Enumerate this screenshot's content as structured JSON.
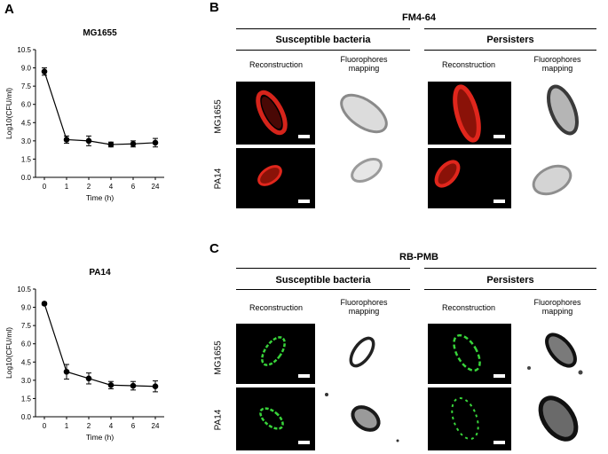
{
  "panels": {
    "a_letter": "A",
    "b_letter": "B",
    "c_letter": "C"
  },
  "chart_data": [
    {
      "type": "line",
      "title": "MG1655",
      "xlabel": "Time (h)",
      "ylabel": "Log10(CFU/ml)",
      "categories": [
        "0",
        "1",
        "2",
        "4",
        "6",
        "24"
      ],
      "values": [
        8.7,
        3.1,
        3.0,
        2.7,
        2.75,
        2.85
      ],
      "errors": [
        0.3,
        0.3,
        0.4,
        0.2,
        0.25,
        0.35
      ],
      "ylim": [
        0,
        10.5
      ],
      "yticks": [
        "0.0",
        "1.5",
        "3.0",
        "4.5",
        "6.0",
        "7.5",
        "9.0",
        "10.5"
      ],
      "grid": false
    },
    {
      "type": "line",
      "title": "PA14",
      "xlabel": "Time (h)",
      "ylabel": "Log10(CFU/ml)",
      "categories": [
        "0",
        "1",
        "2",
        "4",
        "6",
        "24"
      ],
      "values": [
        9.3,
        3.7,
        3.15,
        2.6,
        2.55,
        2.5
      ],
      "errors": [
        0.1,
        0.6,
        0.45,
        0.3,
        0.35,
        0.45
      ],
      "ylim": [
        0,
        10.5
      ],
      "yticks": [
        "0.0",
        "1.5",
        "3.0",
        "4.5",
        "6.0",
        "7.5",
        "9.0",
        "10.5"
      ],
      "grid": false
    }
  ],
  "panel_b": {
    "title": "FM4-64",
    "group_left": "Susceptible bacteria",
    "group_right": "Persisters",
    "col_recon": "Reconstruction",
    "col_fluor_1": "Fluorophores",
    "col_fluor_2": "mapping",
    "row_1": "MG1655",
    "row_2": "PA14",
    "stain_color": "#e0261c"
  },
  "panel_c": {
    "title": "RB-PMB",
    "group_left": "Susceptible bacteria",
    "group_right": "Persisters",
    "col_recon": "Reconstruction",
    "col_fluor_1": "Fluorophores",
    "col_fluor_2": "mapping",
    "row_1": "MG1655",
    "row_2": "PA14",
    "stain_color": "#38d43a"
  }
}
